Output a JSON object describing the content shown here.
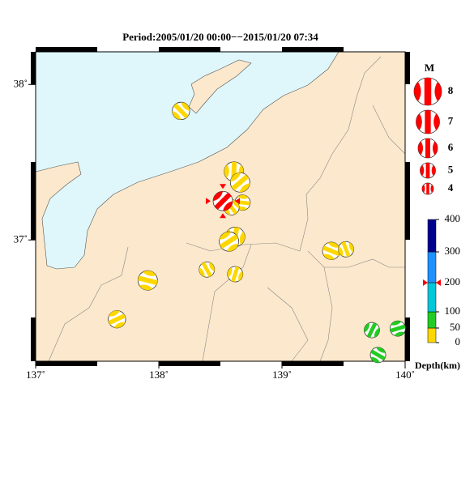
{
  "map": {
    "title": "Period:2005/01/20 00:00−−2015/01/20 07:34",
    "xlim": [
      137,
      140
    ],
    "ylim": [
      36.22,
      38.21
    ],
    "xticks": [
      {
        "value": 137,
        "label": "137˚"
      },
      {
        "value": 138,
        "label": "138˚"
      },
      {
        "value": 139,
        "label": "139˚"
      },
      {
        "value": 140,
        "label": "140˚"
      }
    ],
    "yticks": [
      {
        "value": 37,
        "label": "37˚"
      },
      {
        "value": 38,
        "label": "38˚"
      }
    ],
    "events": [
      {
        "lon": 138.18,
        "lat": 37.83,
        "mag": 5.5,
        "depth": 20
      },
      {
        "lon": 138.61,
        "lat": 37.44,
        "mag": 6,
        "depth": 15
      },
      {
        "lon": 138.66,
        "lat": 37.37,
        "mag": 6,
        "depth": 15
      },
      {
        "lon": 138.68,
        "lat": 37.24,
        "mag": 5,
        "depth": 15
      },
      {
        "lon": 138.59,
        "lat": 37.21,
        "mag": 5,
        "depth": 15
      },
      {
        "lon": 138.62,
        "lat": 37.02,
        "mag": 6,
        "depth": 10
      },
      {
        "lon": 138.57,
        "lat": 36.99,
        "mag": 6,
        "depth": 10
      },
      {
        "lon": 137.91,
        "lat": 36.74,
        "mag": 6,
        "depth": 10
      },
      {
        "lon": 138.39,
        "lat": 36.81,
        "mag": 5,
        "depth": 10
      },
      {
        "lon": 138.62,
        "lat": 36.78,
        "mag": 5,
        "depth": 10
      },
      {
        "lon": 137.66,
        "lat": 36.49,
        "mag": 5.5,
        "depth": 10
      },
      {
        "lon": 139.4,
        "lat": 36.93,
        "mag": 5.5,
        "depth": 10
      },
      {
        "lon": 139.52,
        "lat": 36.94,
        "mag": 5,
        "depth": 10
      },
      {
        "lon": 139.73,
        "lat": 36.42,
        "mag": 5,
        "depth": 60
      },
      {
        "lon": 139.94,
        "lat": 36.43,
        "mag": 5,
        "depth": 60
      },
      {
        "lon": 139.78,
        "lat": 36.26,
        "mag": 5,
        "depth": 60
      }
    ],
    "highlight": {
      "lon": 138.52,
      "lat": 37.25,
      "mag": 6,
      "depth": 200,
      "color": "#ff0000"
    },
    "magnitude_legend": {
      "title": "M",
      "values": [
        8,
        7,
        6,
        5,
        4
      ],
      "color": "#ff0000"
    },
    "depth_scale": {
      "label": "Depth(km)",
      "ticks": [
        0,
        50,
        100,
        200,
        300,
        400
      ],
      "colors": [
        "#ffd700",
        "#22cc22",
        "#00c8d8",
        "#1e90ff",
        "#000090"
      ]
    }
  }
}
